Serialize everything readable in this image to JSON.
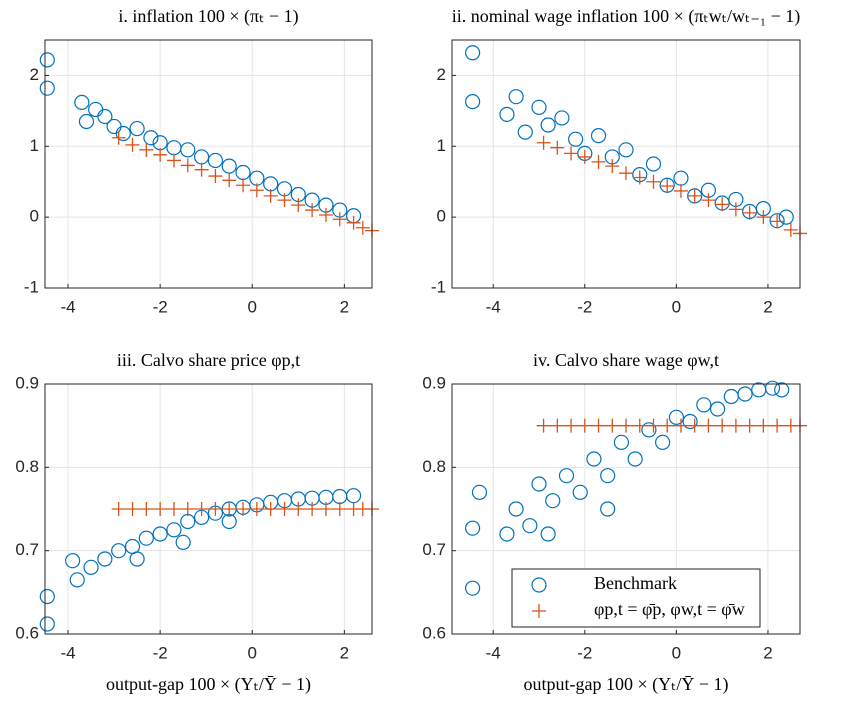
{
  "chart_data": [
    {
      "type": "scatter",
      "title": "i. inflation 100 × (πₜ − 1)",
      "xlim": [
        -4.5,
        2.6
      ],
      "ylim": [
        -1,
        2.5
      ],
      "xticks": [
        -4,
        -2,
        0,
        2
      ],
      "yticks": [
        -1,
        0,
        1,
        2
      ],
      "grid": true,
      "series": [
        {
          "color": "#0072BD",
          "marker": "o",
          "x": [
            -4.45,
            -4.45,
            -3.7,
            -3.6,
            -3.4,
            -3.2,
            -3.0,
            -2.8,
            -2.5,
            -2.2,
            -2.0,
            -1.7,
            -1.4,
            -1.1,
            -0.8,
            -0.5,
            -0.2,
            0.1,
            0.4,
            0.7,
            1.0,
            1.3,
            1.6,
            1.9,
            2.2
          ],
          "y": [
            2.22,
            1.82,
            1.62,
            1.35,
            1.52,
            1.42,
            1.28,
            1.18,
            1.25,
            1.12,
            1.05,
            0.98,
            0.95,
            0.85,
            0.8,
            0.72,
            0.63,
            0.55,
            0.47,
            0.4,
            0.32,
            0.24,
            0.17,
            0.1,
            0.02
          ]
        },
        {
          "color": "#D95319",
          "marker": "+",
          "x": [
            -2.9,
            -2.6,
            -2.3,
            -2.0,
            -1.7,
            -1.4,
            -1.1,
            -0.8,
            -0.5,
            -0.2,
            0.1,
            0.4,
            0.7,
            1.0,
            1.3,
            1.6,
            1.9,
            2.2,
            2.4,
            2.6
          ],
          "y": [
            1.12,
            1.02,
            0.95,
            0.88,
            0.8,
            0.73,
            0.67,
            0.58,
            0.52,
            0.45,
            0.38,
            0.3,
            0.24,
            0.17,
            0.1,
            0.03,
            -0.03,
            -0.08,
            -0.15,
            -0.19
          ]
        }
      ]
    },
    {
      "type": "scatter",
      "title": "ii. nominal wage inflation 100 × (πₜwₜ/wₜ₋₁ − 1)",
      "xlim": [
        -4.9,
        2.7
      ],
      "ylim": [
        -1,
        2.5
      ],
      "xticks": [
        -4,
        -2,
        0,
        2
      ],
      "yticks": [
        -1,
        0,
        1,
        2
      ],
      "grid": true,
      "series": [
        {
          "color": "#0072BD",
          "marker": "o",
          "x": [
            -4.45,
            -4.45,
            -3.7,
            -3.5,
            -3.3,
            -3.0,
            -2.8,
            -2.5,
            -2.2,
            -2.0,
            -1.7,
            -1.4,
            -1.1,
            -0.8,
            -0.5,
            -0.2,
            0.1,
            0.4,
            0.7,
            1.0,
            1.3,
            1.6,
            1.9,
            2.2,
            2.4
          ],
          "y": [
            2.32,
            1.63,
            1.45,
            1.7,
            1.2,
            1.55,
            1.3,
            1.4,
            1.1,
            0.9,
            1.15,
            0.85,
            0.95,
            0.6,
            0.75,
            0.45,
            0.55,
            0.3,
            0.38,
            0.2,
            0.25,
            0.08,
            0.12,
            -0.05,
            0.0
          ]
        },
        {
          "color": "#D95319",
          "marker": "+",
          "x": [
            -2.9,
            -2.6,
            -2.3,
            -2.0,
            -1.7,
            -1.4,
            -1.1,
            -0.8,
            -0.5,
            -0.2,
            0.1,
            0.4,
            0.7,
            1.0,
            1.3,
            1.6,
            1.9,
            2.2,
            2.5,
            2.7
          ],
          "y": [
            1.05,
            0.98,
            0.9,
            0.85,
            0.78,
            0.72,
            0.62,
            0.56,
            0.5,
            0.44,
            0.37,
            0.3,
            0.24,
            0.18,
            0.11,
            0.06,
            0.0,
            -0.06,
            -0.18,
            -0.23
          ]
        }
      ]
    },
    {
      "type": "scatter",
      "title": "iii. Calvo share price φp,t",
      "xlabel": "output-gap 100 × (Yₜ/Ȳ − 1)",
      "xlim": [
        -4.5,
        2.6
      ],
      "ylim": [
        0.6,
        0.9
      ],
      "xticks": [
        -4,
        -2,
        0,
        2
      ],
      "yticks": [
        0.6,
        0.7,
        0.8,
        0.9
      ],
      "grid": true,
      "series": [
        {
          "color": "#0072BD",
          "marker": "o",
          "x": [
            -4.45,
            -4.45,
            -3.9,
            -3.8,
            -3.5,
            -3.2,
            -2.9,
            -2.6,
            -2.3,
            -2.0,
            -1.7,
            -1.4,
            -1.1,
            -0.8,
            -0.5,
            -0.2,
            0.1,
            0.4,
            0.7,
            1.0,
            1.3,
            1.6,
            1.9,
            2.2,
            -2.5,
            -1.5,
            -0.5
          ],
          "y": [
            0.645,
            0.612,
            0.688,
            0.665,
            0.68,
            0.69,
            0.7,
            0.705,
            0.715,
            0.72,
            0.725,
            0.735,
            0.74,
            0.745,
            0.75,
            0.752,
            0.755,
            0.758,
            0.76,
            0.762,
            0.763,
            0.764,
            0.765,
            0.766,
            0.69,
            0.71,
            0.735
          ]
        },
        {
          "color": "#D95319",
          "marker": "+",
          "x": [
            -2.9,
            -2.6,
            -2.3,
            -2.0,
            -1.7,
            -1.4,
            -1.1,
            -0.8,
            -0.5,
            -0.2,
            0.1,
            0.4,
            0.7,
            1.0,
            1.3,
            1.6,
            1.9,
            2.2,
            2.4,
            2.6
          ],
          "y": [
            0.75,
            0.75,
            0.75,
            0.75,
            0.75,
            0.75,
            0.75,
            0.75,
            0.75,
            0.75,
            0.75,
            0.75,
            0.75,
            0.75,
            0.75,
            0.75,
            0.75,
            0.75,
            0.75,
            0.75
          ]
        }
      ]
    },
    {
      "type": "scatter",
      "title": "iv. Calvo share wage φw,t",
      "xlabel": "output-gap 100 × (Yₜ/Ȳ − 1)",
      "xlim": [
        -4.9,
        2.7
      ],
      "ylim": [
        0.6,
        0.9
      ],
      "xticks": [
        -4,
        -2,
        0,
        2
      ],
      "yticks": [
        0.6,
        0.7,
        0.8,
        0.9
      ],
      "grid": true,
      "legend": "southeast",
      "series": [
        {
          "name": "Benchmark",
          "color": "#0072BD",
          "marker": "o",
          "x": [
            -4.45,
            -4.45,
            -4.3,
            -3.7,
            -3.5,
            -3.2,
            -3.0,
            -2.7,
            -2.4,
            -2.1,
            -1.8,
            -1.5,
            -1.2,
            -0.9,
            -0.6,
            -0.3,
            0.0,
            0.3,
            0.6,
            0.9,
            1.2,
            1.5,
            1.8,
            2.1,
            2.3,
            -2.8,
            -1.5
          ],
          "y": [
            0.727,
            0.655,
            0.77,
            0.72,
            0.75,
            0.73,
            0.78,
            0.76,
            0.79,
            0.77,
            0.81,
            0.79,
            0.83,
            0.81,
            0.845,
            0.83,
            0.86,
            0.855,
            0.875,
            0.87,
            0.885,
            0.888,
            0.893,
            0.895,
            0.893,
            0.72,
            0.75
          ]
        },
        {
          "name": "φp,t = φ̄p, φw,t = φ̄w",
          "color": "#D95319",
          "marker": "+",
          "x": [
            -2.9,
            -2.6,
            -2.3,
            -2.0,
            -1.7,
            -1.4,
            -1.1,
            -0.8,
            -0.5,
            -0.2,
            0.1,
            0.4,
            0.7,
            1.0,
            1.3,
            1.6,
            1.9,
            2.2,
            2.5,
            2.7
          ],
          "y": [
            0.85,
            0.85,
            0.85,
            0.85,
            0.85,
            0.85,
            0.85,
            0.85,
            0.85,
            0.85,
            0.85,
            0.85,
            0.85,
            0.85,
            0.85,
            0.85,
            0.85,
            0.85,
            0.85,
            0.85
          ]
        }
      ]
    }
  ]
}
